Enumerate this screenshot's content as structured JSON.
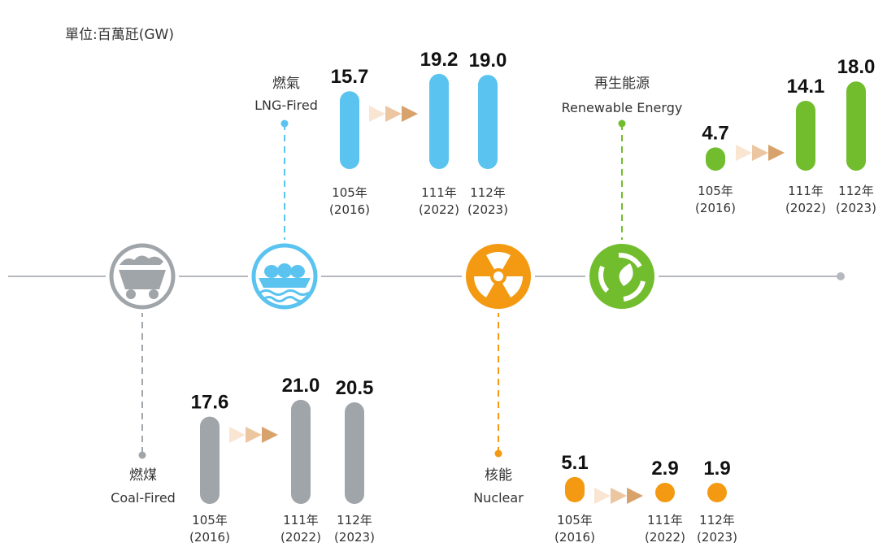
{
  "unit_label": "單位:百萬瓩(GW)",
  "chart_data": {
    "type": "bar",
    "unit": "單位:百萬瓩(GW)",
    "categories": [
      "105年 (2016)",
      "111年 (2022)",
      "112年 (2023)"
    ],
    "series": [
      {
        "name_zh": "燃煤",
        "name": "Coal-Fired",
        "icon": "coal-cart-icon",
        "color": "#a0a5aa",
        "values": [
          17.6,
          21.0,
          20.5
        ],
        "labels": [
          "17.6",
          "21.0",
          "20.5"
        ]
      },
      {
        "name_zh": "燃氣",
        "name": "LNG-Fired",
        "icon": "lng-ship-icon",
        "color": "#5bc3ef",
        "values": [
          15.7,
          19.2,
          19.0
        ],
        "labels": [
          "15.7",
          "19.2",
          "19.0"
        ]
      },
      {
        "name_zh": "核能",
        "name": "Nuclear",
        "icon": "radiation-icon",
        "color": "#f39a12",
        "values": [
          5.1,
          2.9,
          1.9
        ],
        "labels": [
          "5.1",
          "2.9",
          "1.9"
        ]
      },
      {
        "name_zh": "再生能源",
        "name": "Renewable Energy",
        "icon": "recycle-leaf-icon",
        "color": "#72bd2d",
        "values": [
          4.7,
          14.1,
          18.0
        ],
        "labels": [
          "4.7",
          "14.1",
          "18.0"
        ]
      }
    ],
    "year_labels": [
      {
        "year": "105年",
        "paren": "(2016)"
      },
      {
        "year": "111年",
        "paren": "(2022)"
      },
      {
        "year": "112年",
        "paren": "(2023)"
      }
    ],
    "timeline_color": "#b5b9bd",
    "arrow_colors": [
      "#f9e5d2",
      "#ecc6a1",
      "#d7a26c"
    ]
  }
}
